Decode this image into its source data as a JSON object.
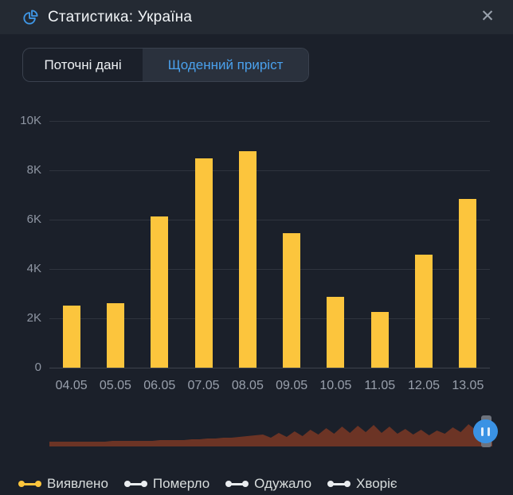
{
  "window": {
    "title": "Статистика: Україна",
    "close_glyph": "✕"
  },
  "tabs": [
    {
      "label": "Поточні дані",
      "active": false
    },
    {
      "label": "Щоденний приріст",
      "active": true
    }
  ],
  "chart_data": {
    "type": "bar",
    "title": "",
    "xlabel": "",
    "ylabel": "",
    "categories": [
      "04.05",
      "05.05",
      "06.05",
      "07.05",
      "08.05",
      "09.05",
      "10.05",
      "11.05",
      "12.05",
      "13.05"
    ],
    "series": [
      {
        "name": "Виявлено",
        "color": "#fcc53d",
        "values": [
          2520,
          2610,
          6130,
          8480,
          8770,
          5450,
          2870,
          2260,
          4580,
          6840
        ]
      }
    ],
    "ylim": [
      0,
      10000
    ],
    "yticks": [
      {
        "value": 0,
        "label": "0"
      },
      {
        "value": 2000,
        "label": "2K"
      },
      {
        "value": 4000,
        "label": "4K"
      },
      {
        "value": 6000,
        "label": "6K"
      },
      {
        "value": 8000,
        "label": "8K"
      },
      {
        "value": 10000,
        "label": "10K"
      }
    ],
    "grid": true,
    "legend_position": "bottom",
    "overview_profile": [
      6,
      6,
      6,
      6,
      6,
      6,
      6,
      6,
      7,
      7,
      7,
      7,
      7,
      7,
      8,
      8,
      8,
      8,
      9,
      9,
      10,
      10,
      11,
      11,
      12,
      13,
      14,
      15,
      11,
      17,
      12,
      19,
      13,
      21,
      15,
      23,
      16,
      25,
      17,
      26,
      18,
      27,
      17,
      25,
      16,
      22,
      15,
      21,
      14,
      20,
      16,
      24,
      18,
      28,
      20,
      30,
      24
    ]
  },
  "legend": [
    {
      "label": "Виявлено",
      "color": "#fcc53d"
    },
    {
      "label": "Померло",
      "color": "#e9ecef"
    },
    {
      "label": "Одужало",
      "color": "#e9ecef"
    },
    {
      "label": "Хворіє",
      "color": "#e9ecef"
    }
  ],
  "colors": {
    "accent_blue": "#4aa1ed",
    "bar_yellow": "#fcc53d",
    "overview_area": "#6c3425",
    "scrubber_blue": "#3a92e4",
    "scrubber_gray": "#6e737d"
  }
}
